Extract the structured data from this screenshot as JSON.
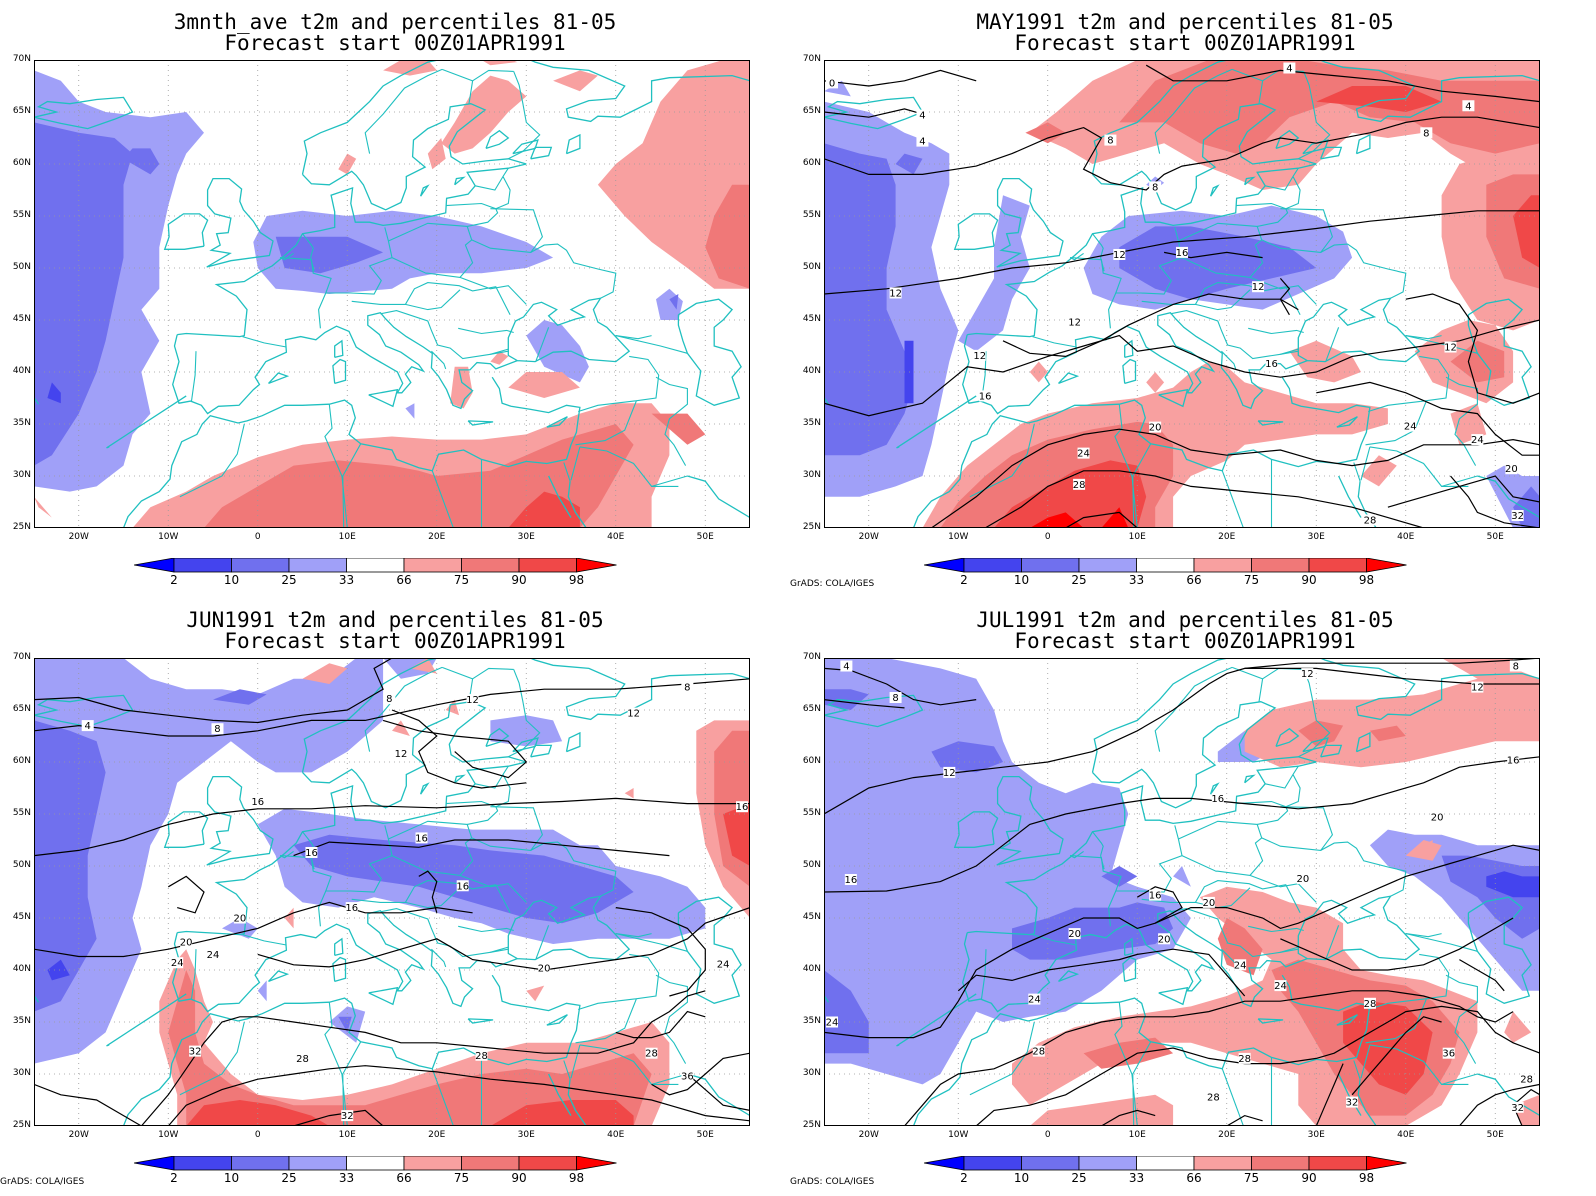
{
  "panels": [
    {
      "id": "p1",
      "title_line1": "3mnth_ave t2m and percentiles 81-05",
      "title_line2": "Forecast start 00Z01APR1991",
      "credit": "",
      "contours": false,
      "contour_labels": []
    },
    {
      "id": "p2",
      "title_line1": "MAY1991 t2m and percentiles 81-05",
      "title_line2": "Forecast start 00Z01APR1991",
      "credit": "GrADS: COLA/IGES",
      "contours": true,
      "contour_labels": [
        "0",
        "4",
        "4",
        "4",
        "4",
        "8",
        "8",
        "8",
        "12",
        "12",
        "12",
        "12",
        "12",
        "12",
        "16",
        "16",
        "16",
        "20",
        "20",
        "24",
        "24",
        "24",
        "28",
        "28",
        "32"
      ]
    },
    {
      "id": "p3",
      "title_line1": "JUN1991 t2m and percentiles 81-05",
      "title_line2": "Forecast start 00Z01APR1991",
      "credit": "GrADS: COLA/IGES",
      "contours": true,
      "contour_labels": [
        "4",
        "8",
        "8",
        "8",
        "12",
        "12",
        "12",
        "16",
        "16",
        "16",
        "16",
        "16",
        "16",
        "20",
        "20",
        "20",
        "24",
        "24",
        "24",
        "28",
        "28",
        "28",
        "32",
        "32",
        "36"
      ]
    },
    {
      "id": "p4",
      "title_line1": "JUL1991 t2m and percentiles 81-05",
      "title_line2": "Forecast start 00Z01APR1991",
      "credit": "GrADS: COLA/IGES",
      "contours": true,
      "contour_labels": [
        "4",
        "8",
        "8",
        "12",
        "12",
        "12",
        "16",
        "16",
        "16",
        "16",
        "20",
        "20",
        "20",
        "20",
        "20",
        "24",
        "24",
        "24",
        "24",
        "28",
        "28",
        "28",
        "28",
        "28",
        "32",
        "32",
        "36"
      ]
    }
  ],
  "latitude_labels": [
    "70N",
    "65N",
    "60N",
    "55N",
    "50N",
    "45N",
    "40N",
    "35N",
    "30N",
    "25N"
  ],
  "longitude_labels": [
    "20W",
    "10W",
    "0",
    "10E",
    "20E",
    "30E",
    "40E",
    "50E"
  ],
  "colorbar": {
    "labels": [
      "2",
      "10",
      "25",
      "33",
      "66",
      "75",
      "90",
      "98"
    ],
    "colors": [
      "#0000ff",
      "#4444ee",
      "#7070ee",
      "#a0a0f8",
      "#ffffff",
      "#f8a0a0",
      "#f07878",
      "#f04848",
      "#ff0000"
    ]
  },
  "colors": {
    "coast": "#20c0c0",
    "contour": "#000000",
    "grid": "#999999"
  }
}
